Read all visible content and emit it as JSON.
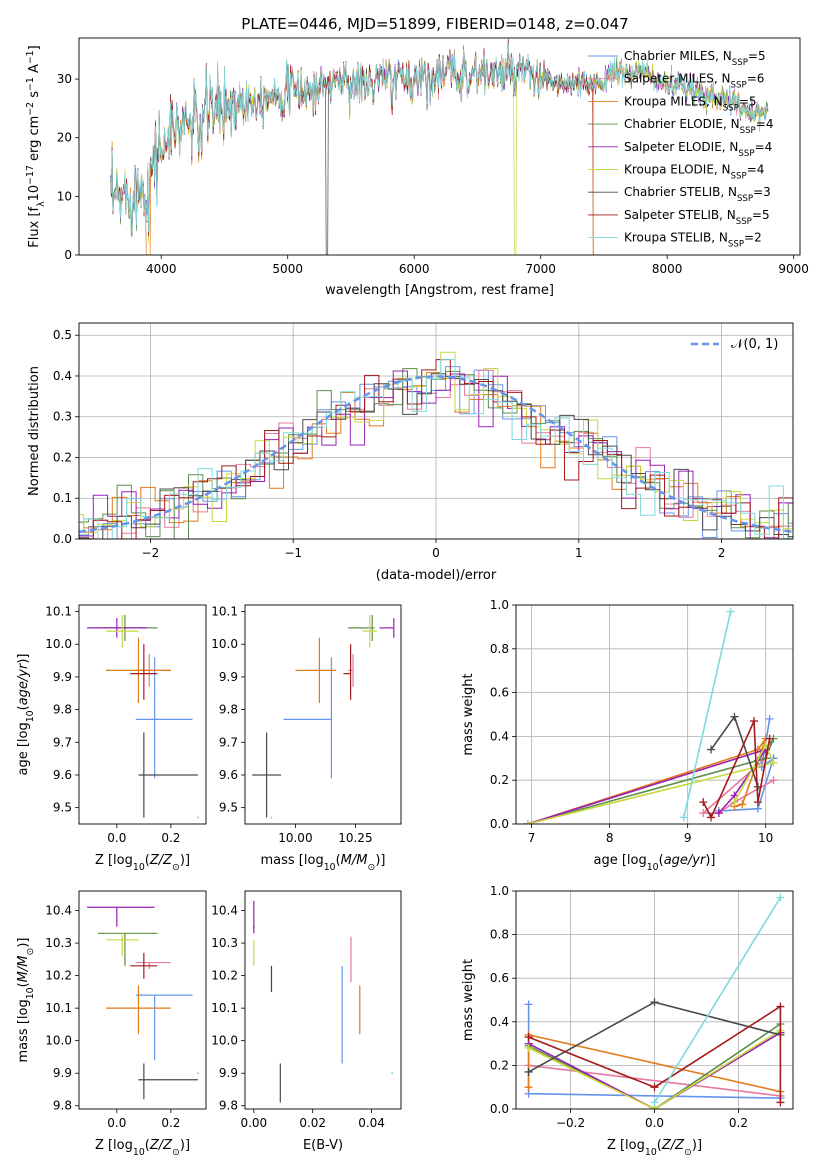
{
  "figure": {
    "title": "PLATE=0446, MJD=51899, FIBERID=0148, z=0.047",
    "background": "#ffffff"
  },
  "models": [
    {
      "name": "Chabrier MILES",
      "n_ssp": 5,
      "color": "#6495ED"
    },
    {
      "name": "Salpeter MILES",
      "n_ssp": 6,
      "color": "#E6799F"
    },
    {
      "name": "Kroupa MILES",
      "n_ssp": 5,
      "color": "#E07B1A"
    },
    {
      "name": "Chabrier ELODIE",
      "n_ssp": 4,
      "color": "#5E8F4A"
    },
    {
      "name": "Salpeter ELODIE",
      "n_ssp": 4,
      "color": "#9A1FB5"
    },
    {
      "name": "Kroupa ELODIE",
      "n_ssp": 4,
      "color": "#C9D740"
    },
    {
      "name": "Chabrier STELIB",
      "n_ssp": 3,
      "color": "#4A4A4A"
    },
    {
      "name": "Salpeter STELIB",
      "n_ssp": 5,
      "color": "#A31A1A"
    },
    {
      "name": "Kroupa STELIB",
      "n_ssp": 2,
      "color": "#7FD9DD"
    }
  ],
  "chart_data": [
    {
      "id": "spectrum",
      "type": "line",
      "xlabel": "wavelength [Angstrom, rest frame]",
      "ylabel": "Flux [f_λ 10^-17 erg cm^-2 s^-1 A^-1]",
      "xlim": [
        3350,
        9050
      ],
      "ylim": [
        0,
        37
      ],
      "xticks": [
        4000,
        5000,
        6000,
        7000,
        8000,
        9000
      ],
      "yticks": [
        0,
        10,
        20,
        30
      ],
      "grid": false,
      "legend": "right",
      "continuum": {
        "x": [
          3600,
          3700,
          3800,
          3900,
          3950,
          4000,
          4100,
          4200,
          4300,
          4400,
          4500,
          4600,
          4800,
          5000,
          5200,
          5400,
          5600,
          5800,
          6000,
          6200,
          6400,
          6600,
          6800,
          7000,
          7200,
          7400,
          7600,
          7800,
          8000,
          8200,
          8400,
          8600,
          8800
        ],
        "y": [
          9,
          10,
          11,
          12,
          17,
          18,
          21,
          23,
          22,
          25,
          25,
          26,
          27,
          28,
          28,
          30,
          29,
          30,
          30,
          31,
          31,
          31,
          31,
          30,
          29,
          29,
          31,
          31,
          29,
          28,
          27,
          25,
          24
        ]
      }
    },
    {
      "id": "residuals",
      "type": "bar",
      "xlabel": "(data-model)/error",
      "ylabel": "Normed distribution",
      "xlim": [
        -2.5,
        2.5
      ],
      "ylim": [
        0,
        0.53
      ],
      "xticks": [
        -2,
        -1,
        0,
        1,
        2
      ],
      "yticks": [
        0.0,
        0.1,
        0.2,
        0.3,
        0.4,
        0.5
      ],
      "grid": true,
      "legend": "top-right",
      "bin_width": 0.1,
      "reference_curve": {
        "name": "𝒩(0, 1)",
        "type": "normal",
        "mean": 0,
        "sigma": 1
      }
    },
    {
      "id": "age_vs_Z",
      "type": "scatter",
      "xlabel": "Z [log10(Z/Z⊙)]",
      "ylabel": "age  [log10(age/yr)]",
      "xlim": [
        -0.14,
        0.33
      ],
      "ylim": [
        9.45,
        10.12
      ],
      "xticks": [
        0.0,
        0.2
      ],
      "yticks": [
        9.5,
        9.6,
        9.7,
        9.8,
        9.9,
        10.0,
        10.1
      ],
      "grid": false,
      "points": [
        {
          "model": "Chabrier MILES",
          "x": 0.14,
          "y": 9.77,
          "xerr": [
            0.07,
            0.14
          ],
          "yerr": [
            0.18,
            0.19
          ]
        },
        {
          "model": "Salpeter MILES",
          "x": 0.12,
          "y": 9.92,
          "xerr": [
            0.05,
            0.08
          ],
          "yerr": [
            0.05,
            0.05
          ]
        },
        {
          "model": "Kroupa MILES",
          "x": 0.08,
          "y": 9.92,
          "xerr": [
            0.12,
            0.12
          ],
          "yerr": [
            0.1,
            0.1
          ]
        },
        {
          "model": "Chabrier ELODIE",
          "x": 0.03,
          "y": 10.05,
          "xerr": [
            0.1,
            0.12
          ],
          "yerr": [
            0.04,
            0.04
          ]
        },
        {
          "model": "Salpeter ELODIE",
          "x": 0.0,
          "y": 10.05,
          "xerr": [
            0.11,
            0.11
          ],
          "yerr": [
            0.03,
            0.03
          ]
        },
        {
          "model": "Kroupa ELODIE",
          "x": 0.02,
          "y": 10.04,
          "xerr": [
            0.06,
            0.06
          ],
          "yerr": [
            0.05,
            0.05
          ]
        },
        {
          "model": "Chabrier STELIB",
          "x": 0.1,
          "y": 9.6,
          "xerr": [
            0.02,
            0.2
          ],
          "yerr": [
            0.13,
            0.13
          ]
        },
        {
          "model": "Salpeter STELIB",
          "x": 0.1,
          "y": 9.91,
          "xerr": [
            0.05,
            0.05
          ],
          "yerr": [
            0.08,
            0.09
          ]
        },
        {
          "model": "Kroupa STELIB",
          "x": 0.3,
          "y": 9.47,
          "xerr": [
            0,
            0
          ],
          "yerr": [
            0,
            0
          ]
        }
      ]
    },
    {
      "id": "age_vs_mass",
      "type": "scatter",
      "xlabel": "mass [log10(M/M⊙)]",
      "ylabel": "",
      "xlim": [
        9.79,
        10.44
      ],
      "ylim": [
        9.45,
        10.12
      ],
      "xticks": [
        10.0,
        10.25
      ],
      "yticks": [
        9.5,
        9.6,
        9.7,
        9.8,
        9.9,
        10.0,
        10.1
      ],
      "grid": false,
      "points": [
        {
          "model": "Chabrier MILES",
          "x": 10.15,
          "y": 9.77,
          "xerr": [
            0.2,
            0.0
          ],
          "yerr": [
            0.18,
            0.19
          ]
        },
        {
          "model": "Salpeter MILES",
          "x": 10.24,
          "y": 9.92,
          "xerr": [
            0.02,
            0.0
          ],
          "yerr": [
            0.05,
            0.05
          ]
        },
        {
          "model": "Kroupa MILES",
          "x": 10.1,
          "y": 9.92,
          "xerr": [
            0.1,
            0.07
          ],
          "yerr": [
            0.1,
            0.1
          ]
        },
        {
          "model": "Chabrier ELODIE",
          "x": 10.32,
          "y": 10.05,
          "xerr": [
            0.1,
            0.01
          ],
          "yerr": [
            0.04,
            0.04
          ]
        },
        {
          "model": "Salpeter ELODIE",
          "x": 10.41,
          "y": 10.05,
          "xerr": [
            0.06,
            0.0
          ],
          "yerr": [
            0.03,
            0.03
          ]
        },
        {
          "model": "Kroupa ELODIE",
          "x": 10.31,
          "y": 10.04,
          "xerr": [
            0.03,
            0.03
          ],
          "yerr": [
            0.05,
            0.05
          ]
        },
        {
          "model": "Chabrier STELIB",
          "x": 9.88,
          "y": 9.6,
          "xerr": [
            0.06,
            0.06
          ],
          "yerr": [
            0.13,
            0.13
          ]
        },
        {
          "model": "Salpeter STELIB",
          "x": 10.23,
          "y": 9.91,
          "xerr": [
            0.03,
            0.0
          ],
          "yerr": [
            0.08,
            0.09
          ]
        },
        {
          "model": "Kroupa STELIB",
          "x": 9.9,
          "y": 9.47,
          "xerr": [
            0,
            0
          ],
          "yerr": [
            0,
            0
          ]
        }
      ]
    },
    {
      "id": "weight_vs_age",
      "type": "line",
      "xlabel": "age  [log10(age/yr)]",
      "ylabel": "mass weight",
      "xlim": [
        6.8,
        10.35
      ],
      "ylim": [
        0,
        1
      ],
      "xticks": [
        7,
        8,
        9,
        10
      ],
      "yticks": [
        0.0,
        0.2,
        0.4,
        0.6,
        0.8,
        1.0
      ],
      "grid": true,
      "series": [
        {
          "model": "Chabrier MILES",
          "x": [
            10.05,
            9.95,
            10.1,
            9.9,
            9.4
          ],
          "y": [
            0.48,
            0.26,
            0.3,
            0.07,
            0.06
          ]
        },
        {
          "model": "Salpeter MILES",
          "x": [
            10.1,
            9.6,
            9.4,
            9.2,
            10.0
          ],
          "y": [
            0.2,
            0.1,
            0.05,
            0.05,
            0.3
          ]
        },
        {
          "model": "Kroupa MILES",
          "x": [
            6.95,
            9.9,
            10.0,
            9.7,
            9.6
          ],
          "y": [
            0.0,
            0.34,
            0.39,
            0.09,
            0.08
          ]
        },
        {
          "model": "Chabrier ELODIE",
          "x": [
            6.95,
            10.0,
            10.1,
            9.9
          ],
          "y": [
            0.0,
            0.3,
            0.39,
            0.29
          ]
        },
        {
          "model": "Salpeter ELODIE",
          "x": [
            6.95,
            10.0,
            9.6,
            9.4
          ],
          "y": [
            0.0,
            0.34,
            0.13,
            0.05
          ]
        },
        {
          "model": "Kroupa ELODIE",
          "x": [
            6.95,
            10.1,
            10.0,
            9.6
          ],
          "y": [
            0.0,
            0.28,
            0.36,
            0.1
          ]
        },
        {
          "model": "Chabrier STELIB",
          "x": [
            9.3,
            9.6,
            9.9
          ],
          "y": [
            0.34,
            0.49,
            0.17
          ]
        },
        {
          "model": "Salpeter STELIB",
          "x": [
            9.2,
            9.3,
            9.85,
            9.9,
            10.05
          ],
          "y": [
            0.1,
            0.03,
            0.47,
            0.1,
            0.39
          ]
        },
        {
          "model": "Kroupa STELIB",
          "x": [
            8.95,
            9.55
          ],
          "y": [
            0.03,
            0.97
          ]
        }
      ]
    },
    {
      "id": "mass_vs_Z",
      "type": "scatter",
      "xlabel": "Z [log10(Z/Z⊙)]",
      "ylabel": "mass [log10(M/M⊙)]",
      "xlim": [
        -0.14,
        0.33
      ],
      "ylim": [
        9.79,
        10.46
      ],
      "xticks": [
        0.0,
        0.2
      ],
      "yticks": [
        9.8,
        9.9,
        10.0,
        10.1,
        10.2,
        10.3,
        10.4
      ],
      "grid": false,
      "points": [
        {
          "model": "Chabrier MILES",
          "x": 0.14,
          "y": 10.14,
          "xerr": [
            0.07,
            0.14
          ],
          "yerr": [
            0.2,
            0.0
          ]
        },
        {
          "model": "Salpeter MILES",
          "x": 0.12,
          "y": 10.24,
          "xerr": [
            0.05,
            0.08
          ],
          "yerr": [
            0.02,
            0.0
          ]
        },
        {
          "model": "Kroupa MILES",
          "x": 0.08,
          "y": 10.1,
          "xerr": [
            0.12,
            0.12
          ],
          "yerr": [
            0.08,
            0.07
          ]
        },
        {
          "model": "Chabrier ELODIE",
          "x": 0.03,
          "y": 10.33,
          "xerr": [
            0.1,
            0.12
          ],
          "yerr": [
            0.1,
            0.0
          ]
        },
        {
          "model": "Salpeter ELODIE",
          "x": 0.0,
          "y": 10.41,
          "xerr": [
            0.11,
            0.14
          ],
          "yerr": [
            0.06,
            0.0
          ]
        },
        {
          "model": "Kroupa ELODIE",
          "x": 0.02,
          "y": 10.31,
          "xerr": [
            0.06,
            0.06
          ],
          "yerr": [
            0.05,
            0.02
          ]
        },
        {
          "model": "Chabrier STELIB",
          "x": 0.1,
          "y": 9.88,
          "xerr": [
            0.02,
            0.2
          ],
          "yerr": [
            0.06,
            0.05
          ]
        },
        {
          "model": "Salpeter STELIB",
          "x": 0.1,
          "y": 10.23,
          "xerr": [
            0.05,
            0.05
          ],
          "yerr": [
            0.04,
            0.04
          ]
        },
        {
          "model": "Kroupa STELIB",
          "x": 0.3,
          "y": 9.9,
          "xerr": [
            0,
            0
          ],
          "yerr": [
            0,
            0
          ]
        }
      ]
    },
    {
      "id": "mass_vs_ebv",
      "type": "scatter",
      "xlabel": "E(B-V)",
      "ylabel": "",
      "xlim": [
        -0.003,
        0.05
      ],
      "ylim": [
        9.79,
        10.46
      ],
      "xticks": [
        0.0,
        0.02,
        0.04
      ],
      "yticks": [
        9.8,
        9.9,
        10.0,
        10.1,
        10.2,
        10.3,
        10.4
      ],
      "grid": false,
      "points": [
        {
          "model": "Chabrier MILES",
          "x": 0.03,
          "y": 10.13,
          "yerr": [
            0.2,
            0.1
          ]
        },
        {
          "model": "Salpeter MILES",
          "x": 0.033,
          "y": 10.25,
          "yerr": [
            0.07,
            0.07
          ]
        },
        {
          "model": "Kroupa MILES",
          "x": 0.036,
          "y": 10.09,
          "yerr": [
            0.07,
            0.08
          ]
        },
        {
          "model": "Chabrier ELODIE",
          "x": 0.0,
          "y": 10.35,
          "yerr": [
            0.0,
            0.0
          ]
        },
        {
          "model": "Salpeter ELODIE",
          "x": 0.0,
          "y": 10.38,
          "yerr": [
            0.05,
            0.05
          ]
        },
        {
          "model": "Kroupa ELODIE",
          "x": 0.0,
          "y": 10.27,
          "yerr": [
            0.04,
            0.04
          ]
        },
        {
          "model": "Chabrier STELIB",
          "x": 0.009,
          "y": 9.87,
          "yerr": [
            0.06,
            0.06
          ]
        },
        {
          "model": "Salpeter STELIB",
          "x": 0.006,
          "y": 10.19,
          "yerr": [
            0.04,
            0.04
          ]
        },
        {
          "model": "Kroupa STELIB",
          "x": 0.047,
          "y": 9.9,
          "yerr": [
            0,
            0
          ]
        }
      ]
    },
    {
      "id": "weight_vs_Z",
      "type": "line",
      "xlabel": "Z [log10(Z/Z⊙)]",
      "ylabel": "mass weight",
      "xlim": [
        -0.33,
        0.33
      ],
      "ylim": [
        0,
        1
      ],
      "xticks": [
        -0.2,
        0.0,
        0.2
      ],
      "yticks": [
        0.0,
        0.2,
        0.4,
        0.6,
        0.8,
        1.0
      ],
      "grid": true,
      "series": [
        {
          "model": "Chabrier MILES",
          "x": [
            -0.3,
            -0.3,
            0.3
          ],
          "y": [
            0.48,
            0.07,
            0.05
          ]
        },
        {
          "model": "Salpeter MILES",
          "x": [
            -0.3,
            0.3
          ],
          "y": [
            0.2,
            0.06
          ]
        },
        {
          "model": "Kroupa MILES",
          "x": [
            -0.3,
            -0.3,
            0.3
          ],
          "y": [
            0.1,
            0.34,
            0.08
          ]
        },
        {
          "model": "Chabrier ELODIE",
          "x": [
            -0.3,
            0.0,
            0.3
          ],
          "y": [
            0.29,
            0.0,
            0.39
          ]
        },
        {
          "model": "Salpeter ELODIE",
          "x": [
            -0.3,
            0.0,
            0.3
          ],
          "y": [
            0.3,
            0.0,
            0.35
          ]
        },
        {
          "model": "Kroupa ELODIE",
          "x": [
            -0.3,
            0.0,
            0.3
          ],
          "y": [
            0.28,
            0.0,
            0.36
          ]
        },
        {
          "model": "Chabrier STELIB",
          "x": [
            -0.3,
            0.0,
            0.3
          ],
          "y": [
            0.17,
            0.49,
            0.34
          ]
        },
        {
          "model": "Salpeter STELIB",
          "x": [
            -0.3,
            0.0,
            0.3,
            0.3
          ],
          "y": [
            0.33,
            0.1,
            0.47,
            0.03
          ]
        },
        {
          "model": "Kroupa STELIB",
          "x": [
            0.0,
            0.3
          ],
          "y": [
            0.03,
            0.97
          ]
        }
      ]
    }
  ]
}
